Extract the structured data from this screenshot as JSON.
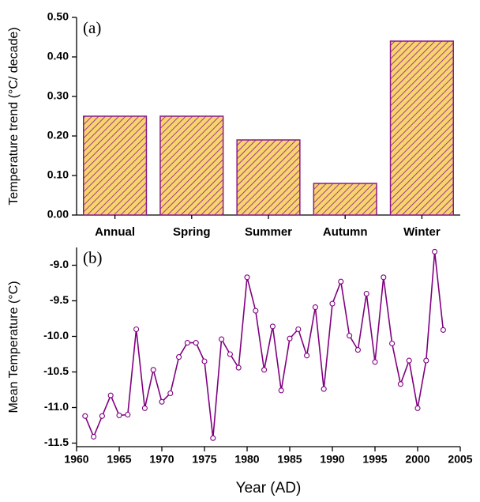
{
  "chart_data": [
    {
      "type": "bar",
      "annotation": "(a)",
      "y_label": "Temperature trend (°C/ decade)",
      "categories": [
        "Annual",
        "Spring",
        "Summer",
        "Autumn",
        "Winter"
      ],
      "values": [
        0.25,
        0.25,
        0.19,
        0.08,
        0.44
      ],
      "color": "#f7d46e",
      "hatch_color": "#8b1a8b",
      "ylim": [
        0,
        0.5
      ],
      "yticks": [
        {
          "value": 0,
          "label": "0.00"
        },
        {
          "value": 0.1,
          "label": "0.10"
        },
        {
          "value": 0.2,
          "label": "0.20"
        },
        {
          "value": 0.3,
          "label": "0.30"
        },
        {
          "value": 0.4,
          "label": "0.40"
        },
        {
          "value": 0.5,
          "label": "0.50"
        }
      ]
    },
    {
      "type": "line",
      "annotation": "(b)",
      "y_label": "Mean Temperature (°C)",
      "x_label": "Year (AD)",
      "x": [
        1961,
        1962,
        1963,
        1964,
        1965,
        1966,
        1967,
        1968,
        1969,
        1970,
        1971,
        1972,
        1973,
        1974,
        1975,
        1976,
        1977,
        1978,
        1979,
        1980,
        1981,
        1982,
        1983,
        1984,
        1985,
        1986,
        1987,
        1988,
        1989,
        1990,
        1991,
        1992,
        1993,
        1994,
        1995,
        1996,
        1997,
        1998,
        1999,
        2000,
        2001,
        2002,
        2003
      ],
      "values": [
        -11.12,
        -11.41,
        -11.12,
        -10.83,
        -11.11,
        -11.1,
        -9.9,
        -11.01,
        -10.47,
        -10.92,
        -10.8,
        -10.29,
        -10.09,
        -10.09,
        -10.35,
        -11.43,
        -10.04,
        -10.25,
        -10.44,
        -9.17,
        -9.64,
        -10.47,
        -9.86,
        -10.76,
        -10.03,
        -9.9,
        -10.27,
        -9.59,
        -10.74,
        -9.54,
        -9.23,
        -9.99,
        -10.19,
        -9.4,
        -10.36,
        -9.17,
        -10.1,
        -10.67,
        -10.34,
        -11.01,
        -10.34,
        -8.81,
        -9.91
      ],
      "color": "#800080",
      "xlim": [
        1960,
        2005
      ],
      "xticks": [
        1960,
        1965,
        1970,
        1975,
        1980,
        1985,
        1990,
        1995,
        2000,
        2005
      ],
      "ylim": [
        -11.55,
        -8.75
      ],
      "yticks": [
        -11.5,
        {
          "value": -11,
          "label": "-11.0"
        },
        -10.5,
        {
          "value": -10,
          "label": "-10.0"
        },
        -9.5,
        {
          "value": -9,
          "label": "-9.0"
        }
      ]
    }
  ]
}
